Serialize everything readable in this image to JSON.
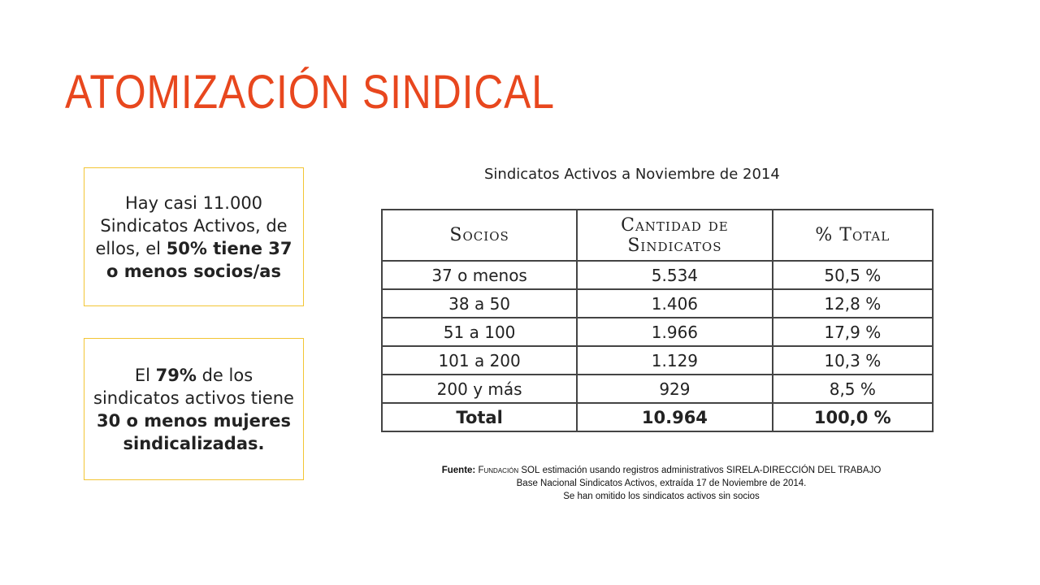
{
  "slide": {
    "title": "ATOMIZACIÓN SINDICAL"
  },
  "callouts": {
    "box1": {
      "part1": "Hay casi 11.000 Sindicatos Activos, de ellos, el ",
      "bold1": "50% tiene 37 o menos socios/as",
      "part2": ""
    },
    "box2": {
      "part1": "El ",
      "bold1": "79%",
      "part2": " de los sindicatos activos tiene ",
      "bold2": "30 o menos mujeres sindicalizadas."
    }
  },
  "table": {
    "caption": "Sindicatos Activos a Noviembre de 2014",
    "headers": [
      "Socios",
      "Cantidad de",
      "Sindicatos",
      "% Total"
    ],
    "rows": [
      [
        "37 o menos",
        "5.534",
        "50,5 %"
      ],
      [
        "38 a 50",
        "1.406",
        "12,8 %"
      ],
      [
        "51 a 100",
        "1.966",
        "17,9 %"
      ],
      [
        "101 a 200",
        "1.129",
        "10,3 %"
      ],
      [
        "200 y más",
        "929",
        "8,5 %"
      ]
    ],
    "total": [
      "Total",
      "10.964",
      "100,0 %"
    ]
  },
  "source": {
    "label": "Fuente:",
    "org": "Fundación SOL",
    "line1_rest": " estimación usando registros administrativos SIRELA-DIRECCIÓN DEL TRABAJO",
    "line2": "Base Nacional Sindicatos Activos, extraída 17 de Noviembre de 2014.",
    "line3": "Se han omitido los sindicatos activos sin socios"
  }
}
